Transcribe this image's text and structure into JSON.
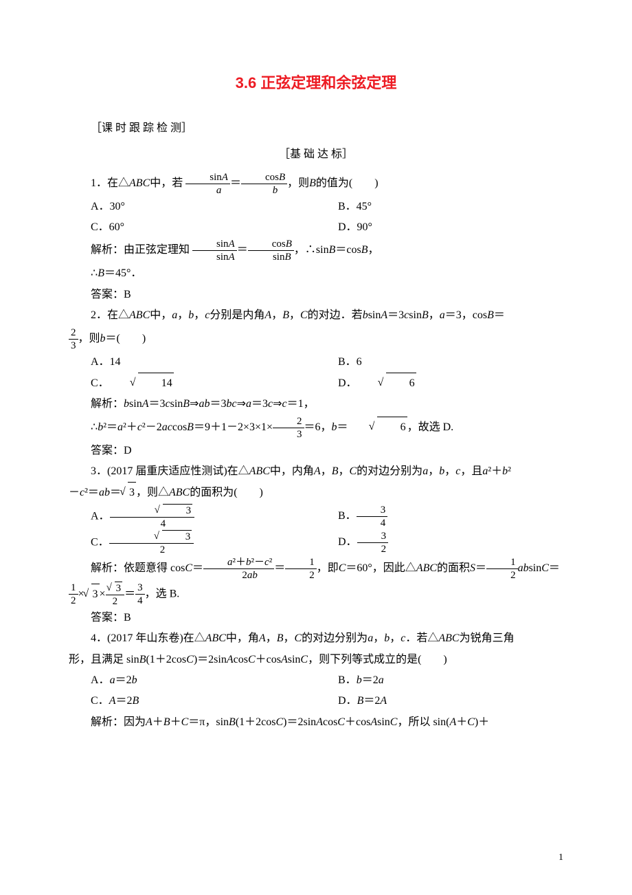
{
  "title": "3.6 正弦定理和余弦定理",
  "section_label": "［课 时 跟 踪 检 测］",
  "sub_label": "［基 础 达 标］",
  "q1": {
    "stem_pre": "1．在△",
    "abc": "ABC",
    "stem_mid": "中，若",
    "stem_post": "，则",
    "stem_end": "的值为(　　)",
    "fr1_num": "sinA",
    "fr1_den": "a",
    "fr2_num": "cosB",
    "fr2_den": "b",
    "B": "B",
    "optA": "A．30°",
    "optB": "B．45°",
    "optC": "C．60°",
    "optD": "D．90°",
    "expl_pre": "解析：由正弦定理知",
    "e1n": "sinA",
    "e1d": "sinA",
    "e2n": "cosB",
    "e2d": "sinB",
    "expl_mid": "，∴sin",
    "expl_mid2": "＝cos",
    "expl_mid3": "，",
    "line2": "∴",
    "line2b": "＝45°．",
    "ans": "答案：B"
  },
  "q2": {
    "stem1": "2．在△",
    "abc": "ABC",
    "stem2": "中，",
    "stem3": "分别是内角",
    "stem4": "的对边．若",
    "stem5": "sin",
    "stem6": "＝3",
    "stem7": "sin",
    "stem8": "，",
    "stem9": "＝3，cos",
    "stem10": "＝",
    "a": "a",
    "b": "b",
    "c": "c",
    "A": "A",
    "B": "B",
    "C": "C",
    "fr_num": "2",
    "fr_den": "3",
    "stem11": "，则",
    "stem12": "＝(　　)",
    "optA": "A．14",
    "optB": "B．6",
    "optC_pre": "C．",
    "optC_sqrt": "14",
    "optD_pre": "D．",
    "optD_sqrt": "6",
    "expl1": "解析：",
    "expl2": "sin",
    "expl3": "＝3",
    "expl4": "sin",
    "expl5": "⇒",
    "expl6": "＝3",
    "expl7": "⇒",
    "expl8": "＝3",
    "expl9": "⇒",
    "expl10": "＝1，",
    "line2_1": "∴",
    "line2_2": "²＝",
    "line2_3": "²＋",
    "line2_4": "²－2",
    "line2_5": "cos",
    "line2_6": "＝9＋1－2×3×1×",
    "fr2n": "2",
    "fr2d": "3",
    "line2_7": "＝6，",
    "line2_8": "＝",
    "sqrt6": "6",
    "line2_9": "，故选 D.",
    "ans": "答案：D"
  },
  "q3": {
    "stem1": "3．(2017 届重庆适应性测试)在△",
    "abc": "ABC",
    "stem2": "中，内角",
    "stem3": "的对边分别为",
    "stem4": "，且",
    "stem5": "²＋",
    "stem6": "²",
    "line2_1": "－",
    "line2_2": "²＝",
    "line2_3": "＝",
    "sqrt3": "3",
    "line2_4": "，则△",
    "line2_5": "的面积为(　　)",
    "optA_pre": "A．",
    "optA_n": "",
    "optA_d": "4",
    "optB_pre": "B．",
    "optB_n": "3",
    "optB_d": "4",
    "optC_pre": "C．",
    "optC_d": "2",
    "optD_pre": "D．",
    "optD_n": "3",
    "optD_d": "2",
    "expl1": "解析：依题意得 cos",
    "expl2": "＝",
    "frAn_top": "a²＋b²－c²",
    "frAn_bot": "2ab",
    "expl3": "＝",
    "fr12n": "1",
    "fr12d": "2",
    "expl4": "，即",
    "expl5": "＝60°，因此△",
    "expl6": "的面积",
    "expl7": "＝",
    "expl8": "sin",
    "expl9": "＝",
    "line2a": "×",
    "line2b": "×",
    "line2c": "＝",
    "fr34n": "3",
    "fr34d": "4",
    "line2d": "，选 B.",
    "ans": "答案：B",
    "A": "A",
    "B": "B",
    "C": "C",
    "S": "S",
    "a": "a",
    "b": "b",
    "c": "c"
  },
  "q4": {
    "stem1": "4．(2017 年山东卷)在△",
    "abc": "ABC",
    "stem2": "中，角",
    "stem3": "的对边分别为",
    "stem4": "．若△",
    "stem5": "为锐角三角",
    "line2_1": "形，且满足 sin",
    "line2_2": "(1＋2cos",
    "line2_3": ")＝2sin",
    "line2_4": "cos",
    "line2_5": "＋cos",
    "line2_6": "sin",
    "line2_7": "，则下列等式成立的是(　　)",
    "optA_pre": "A．",
    "optA": "＝2",
    "optB_pre": "B．",
    "optB": "＝2",
    "optC_pre": "C．",
    "optC": "＝2",
    "optD_pre": "D．",
    "optD": "＝2",
    "expl1": "解析：因为",
    "expl2": "＋",
    "expl3": "＋",
    "expl4": "＝π，sin",
    "expl5": "(1＋2cos",
    "expl6": ")＝2sin",
    "expl7": "cos",
    "expl8": "＋cos",
    "expl9": "sin",
    "expl10": "，所以 sin(",
    "expl11": "＋",
    "expl12": ")＋",
    "A": "A",
    "B": "B",
    "C": "C",
    "a": "a",
    "b": "b",
    "c": "c"
  },
  "page": "1"
}
